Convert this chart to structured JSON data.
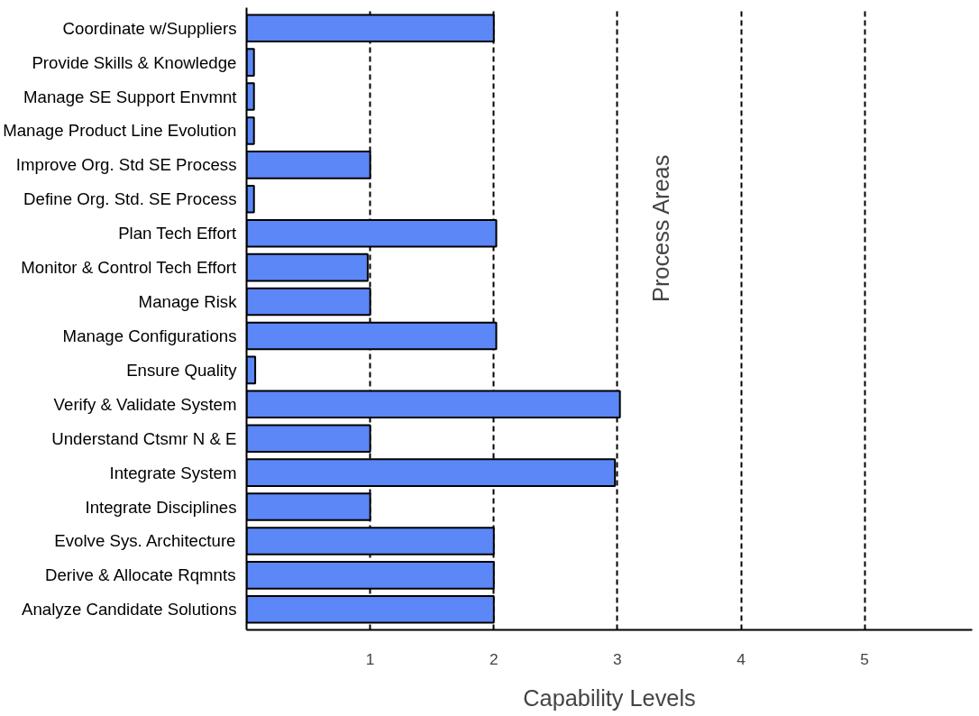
{
  "chart_data": {
    "type": "bar",
    "orientation": "horizontal",
    "xlabel": "Capability Levels",
    "ylabel": "Process Areas",
    "categories": [
      "Coordinate w/Suppliers",
      "Provide Skills & Knowledge",
      "Manage SE Support Envmnt",
      "Manage Product Line Evolution",
      "Improve Org. Std SE Process",
      "Define Org. Std. SE Process",
      "Plan Tech Effort",
      "Monitor & Control Tech Effort",
      "Manage Risk",
      "Manage Configurations",
      "Ensure Quality",
      "Verify & Validate System",
      "Understand Ctsmr N & E",
      "Integrate System",
      "Integrate Disciplines",
      "Evolve Sys. Architecture",
      "Derive & Allocate Rqmnts",
      "Analyze Candidate Solutions"
    ],
    "values": [
      2,
      0.06,
      0.06,
      0.06,
      1,
      0.06,
      2.02,
      0.98,
      1,
      2.02,
      0.07,
      3.02,
      1,
      2.98,
      1,
      2,
      2,
      2
    ],
    "color": "#5b87f7",
    "xlim": [
      0,
      5.87
    ],
    "xticks": [
      1,
      2,
      3,
      4,
      5
    ],
    "grid": "x",
    "line_style": "dashed"
  }
}
